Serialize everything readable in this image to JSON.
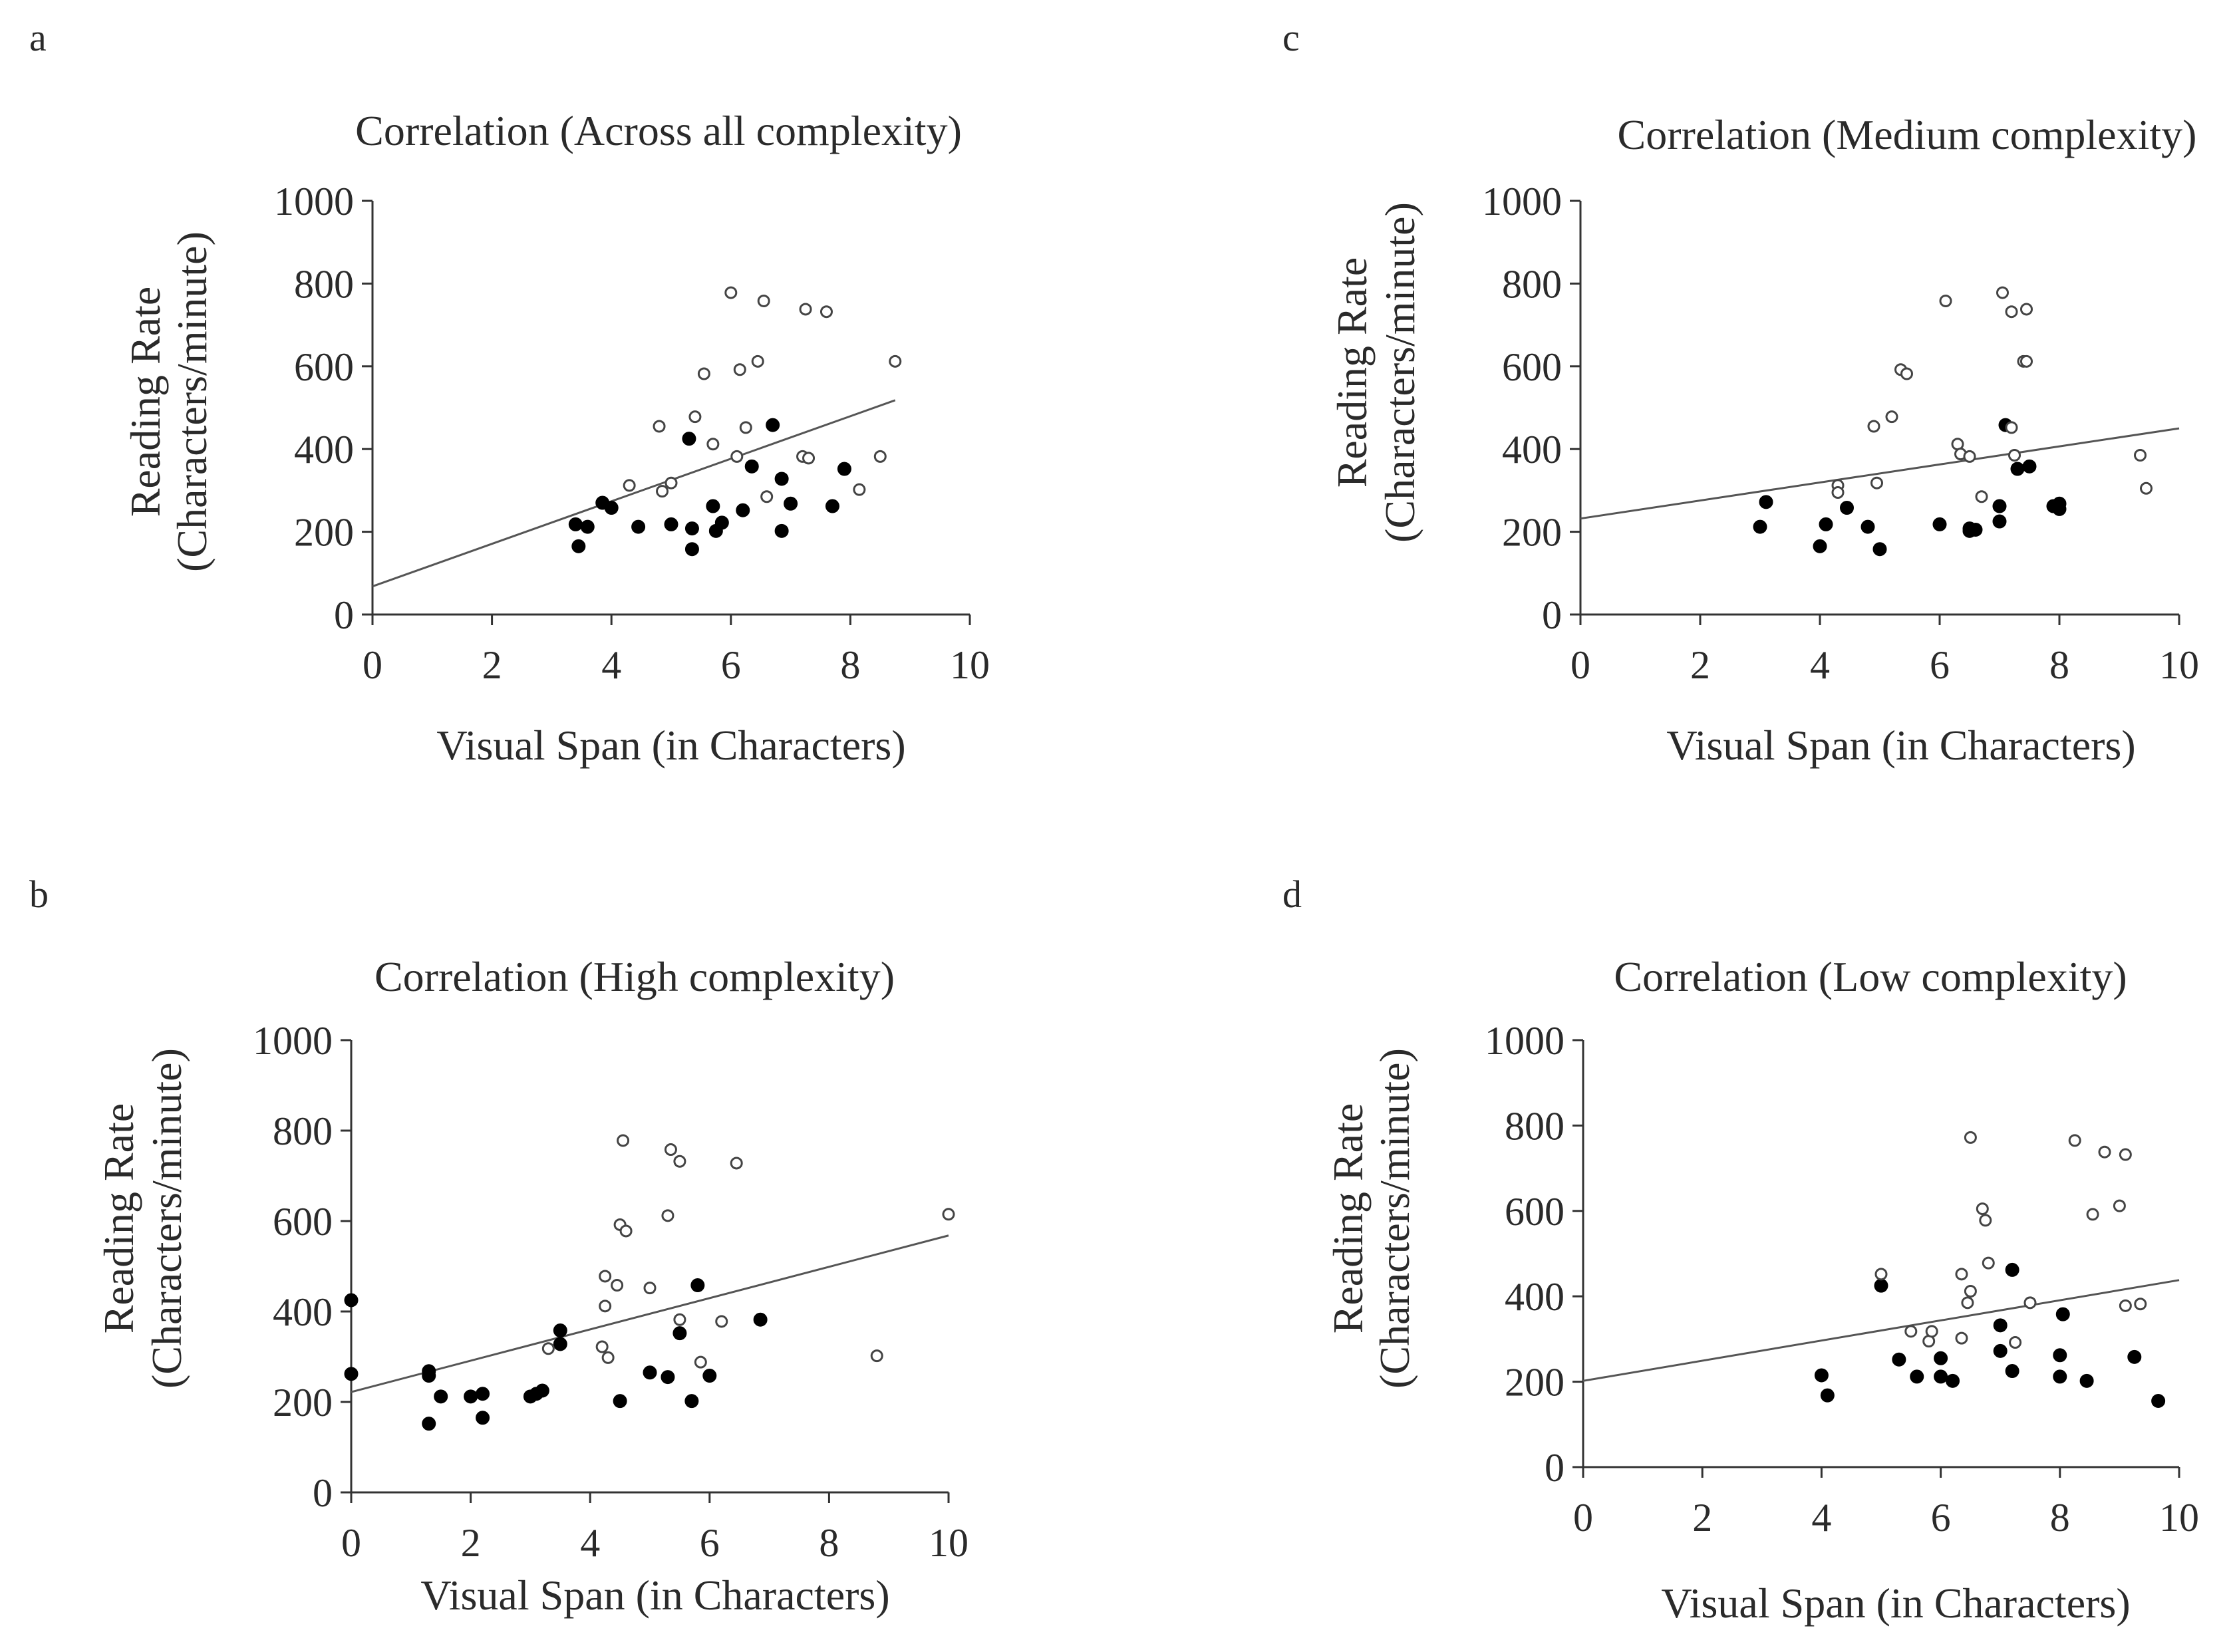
{
  "chart_data": [
    {
      "panel": "a",
      "type": "scatter",
      "title": "Correlation (Across all complexity)",
      "xlabel": "Visual Span (in Characters)",
      "ylabel": [
        "Reading Rate",
        "(Characters/minute)"
      ],
      "xlim": [
        0,
        10
      ],
      "ylim": [
        0,
        1000
      ],
      "xticks": [
        "0",
        "2",
        "4",
        "6",
        "8",
        "10"
      ],
      "yticks": [
        "0",
        "200",
        "400",
        "600",
        "800",
        "1000"
      ],
      "grid": false,
      "trendline": [
        [
          0,
          68
        ],
        [
          8.75,
          518
        ]
      ],
      "series": [
        {
          "marker": "filled",
          "points": [
            [
              3.4,
              218
            ],
            [
              3.45,
              165
            ],
            [
              3.6,
              212
            ],
            [
              3.85,
              270
            ],
            [
              4.0,
              258
            ],
            [
              4.45,
              212
            ],
            [
              5.0,
              218
            ],
            [
              5.3,
              425
            ],
            [
              5.35,
              208
            ],
            [
              5.35,
              158
            ],
            [
              5.7,
              262
            ],
            [
              5.75,
              202
            ],
            [
              5.85,
              222
            ],
            [
              6.2,
              252
            ],
            [
              6.35,
              358
            ],
            [
              6.7,
              458
            ],
            [
              6.85,
              328
            ],
            [
              6.85,
              202
            ],
            [
              7.0,
              268
            ],
            [
              7.7,
              262
            ],
            [
              7.9,
              352
            ]
          ]
        },
        {
          "marker": "open",
          "points": [
            [
              4.3,
              312
            ],
            [
              4.8,
              455
            ],
            [
              4.85,
              298
            ],
            [
              5.0,
              318
            ],
            [
              5.4,
              478
            ],
            [
              5.55,
              582
            ],
            [
              5.7,
              412
            ],
            [
              6.0,
              778
            ],
            [
              6.1,
              382
            ],
            [
              6.15,
              592
            ],
            [
              6.25,
              452
            ],
            [
              6.45,
              612
            ],
            [
              6.55,
              758
            ],
            [
              6.6,
              285
            ],
            [
              7.2,
              382
            ],
            [
              7.25,
              738
            ],
            [
              7.3,
              378
            ],
            [
              7.6,
              732
            ],
            [
              8.15,
              302
            ],
            [
              8.5,
              382
            ],
            [
              8.75,
              612
            ]
          ]
        }
      ]
    },
    {
      "panel": "c",
      "type": "scatter",
      "title": "Correlation (Medium complexity)",
      "xlabel": "Visual Span (in Characters)",
      "ylabel": [
        "Reading Rate",
        "(Characters/minute)"
      ],
      "xlim": [
        0,
        10
      ],
      "ylim": [
        0,
        1000
      ],
      "xticks": [
        "0",
        "2",
        "4",
        "6",
        "8",
        "10"
      ],
      "yticks": [
        "0",
        "200",
        "400",
        "600",
        "800",
        "1000"
      ],
      "grid": false,
      "trendline": [
        [
          0,
          232
        ],
        [
          10,
          450
        ]
      ],
      "series": [
        {
          "marker": "filled",
          "points": [
            [
              3.0,
              212
            ],
            [
              3.1,
              272
            ],
            [
              4.0,
              165
            ],
            [
              4.1,
              218
            ],
            [
              4.45,
              258
            ],
            [
              4.8,
              212
            ],
            [
              5.0,
              158
            ],
            [
              6.0,
              218
            ],
            [
              6.5,
              208
            ],
            [
              6.5,
              202
            ],
            [
              6.6,
              205
            ],
            [
              7.0,
              225
            ],
            [
              7.0,
              262
            ],
            [
              7.1,
              458
            ],
            [
              7.3,
              352
            ],
            [
              7.5,
              358
            ],
            [
              7.9,
              262
            ],
            [
              8.0,
              255
            ],
            [
              8.0,
              268
            ]
          ]
        },
        {
          "marker": "open",
          "points": [
            [
              4.3,
              312
            ],
            [
              4.3,
              295
            ],
            [
              4.9,
              455
            ],
            [
              4.95,
              318
            ],
            [
              5.2,
              478
            ],
            [
              5.35,
              592
            ],
            [
              5.45,
              582
            ],
            [
              6.1,
              758
            ],
            [
              6.3,
              412
            ],
            [
              6.35,
              388
            ],
            [
              6.5,
              382
            ],
            [
              6.7,
              285
            ],
            [
              7.05,
              778
            ],
            [
              7.2,
              732
            ],
            [
              7.2,
              452
            ],
            [
              7.25,
              385
            ],
            [
              7.4,
              612
            ],
            [
              7.45,
              612
            ],
            [
              7.45,
              738
            ],
            [
              9.35,
              385
            ],
            [
              9.45,
              305
            ]
          ]
        }
      ]
    },
    {
      "panel": "b",
      "type": "scatter",
      "title": "Correlation (High complexity)",
      "xlabel": "Visual Span (in Characters)",
      "ylabel": [
        "Reading Rate",
        "(Characters/minute)"
      ],
      "xlim": [
        0,
        10
      ],
      "ylim": [
        0,
        1000
      ],
      "xticks": [
        "0",
        "2",
        "4",
        "6",
        "8",
        "10"
      ],
      "yticks": [
        "0",
        "200",
        "400",
        "600",
        "800",
        "1000"
      ],
      "grid": false,
      "trendline": [
        [
          0,
          222
        ],
        [
          10,
          568
        ]
      ],
      "series": [
        {
          "marker": "filled",
          "points": [
            [
              0,
              425
            ],
            [
              0,
              262
            ],
            [
              1.3,
              258
            ],
            [
              1.3,
              268
            ],
            [
              1.3,
              152
            ],
            [
              1.5,
              212
            ],
            [
              2.0,
              212
            ],
            [
              2.2,
              218
            ],
            [
              2.2,
              165
            ],
            [
              3.0,
              212
            ],
            [
              3.1,
              218
            ],
            [
              3.2,
              225
            ],
            [
              3.5,
              328
            ],
            [
              3.5,
              358
            ],
            [
              4.5,
              202
            ],
            [
              5.0,
              265
            ],
            [
              5.3,
              255
            ],
            [
              5.5,
              352
            ],
            [
              5.7,
              202
            ],
            [
              5.8,
              458
            ],
            [
              6.0,
              258
            ],
            [
              6.85,
              382
            ]
          ]
        },
        {
          "marker": "open",
          "points": [
            [
              3.3,
              318
            ],
            [
              4.2,
              322
            ],
            [
              4.25,
              412
            ],
            [
              4.25,
              478
            ],
            [
              4.3,
              298
            ],
            [
              4.45,
              458
            ],
            [
              4.5,
              592
            ],
            [
              4.55,
              778
            ],
            [
              4.6,
              578
            ],
            [
              5.0,
              452
            ],
            [
              5.3,
              612
            ],
            [
              5.35,
              758
            ],
            [
              5.5,
              732
            ],
            [
              5.5,
              382
            ],
            [
              5.85,
              288
            ],
            [
              6.2,
              378
            ],
            [
              6.45,
              728
            ],
            [
              8.8,
              302
            ],
            [
              10.0,
              615
            ]
          ]
        }
      ]
    },
    {
      "panel": "d",
      "type": "scatter",
      "title": "Correlation (Low complexity)",
      "xlabel": "Visual Span (in Characters)",
      "ylabel": [
        "Reading Rate",
        "(Characters/minute)"
      ],
      "xlim": [
        0,
        10
      ],
      "ylim": [
        0,
        1000
      ],
      "xticks": [
        "0",
        "2",
        "4",
        "6",
        "8",
        "10"
      ],
      "yticks": [
        "0",
        "200",
        "400",
        "600",
        "800",
        "1000"
      ],
      "grid": false,
      "trendline": [
        [
          0,
          202
        ],
        [
          10,
          438
        ]
      ],
      "series": [
        {
          "marker": "filled",
          "points": [
            [
              4.0,
              215
            ],
            [
              4.1,
              168
            ],
            [
              5.0,
              425
            ],
            [
              5.3,
              252
            ],
            [
              5.6,
              212
            ],
            [
              6.0,
              212
            ],
            [
              6.0,
              255
            ],
            [
              6.2,
              202
            ],
            [
              7.0,
              272
            ],
            [
              7.0,
              332
            ],
            [
              7.2,
              462
            ],
            [
              7.2,
              225
            ],
            [
              8.0,
              212
            ],
            [
              8.0,
              262
            ],
            [
              8.05,
              358
            ],
            [
              8.45,
              202
            ],
            [
              9.25,
              258
            ],
            [
              9.65,
              155
            ]
          ]
        },
        {
          "marker": "open",
          "points": [
            [
              5.0,
              452
            ],
            [
              5.5,
              318
            ],
            [
              5.8,
              295
            ],
            [
              5.85,
              318
            ],
            [
              6.35,
              452
            ],
            [
              6.45,
              385
            ],
            [
              6.5,
              772
            ],
            [
              6.5,
              412
            ],
            [
              6.35,
              302
            ],
            [
              6.7,
              605
            ],
            [
              6.75,
              578
            ],
            [
              6.8,
              478
            ],
            [
              7.25,
              292
            ],
            [
              7.5,
              385
            ],
            [
              8.25,
              765
            ],
            [
              8.55,
              592
            ],
            [
              8.75,
              738
            ],
            [
              9.0,
              612
            ],
            [
              9.1,
              732
            ],
            [
              9.1,
              378
            ],
            [
              9.35,
              382
            ]
          ]
        }
      ]
    }
  ]
}
